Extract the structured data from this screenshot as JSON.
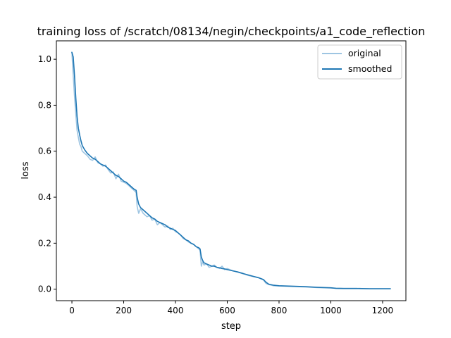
{
  "chart_data": {
    "type": "line",
    "title": "training loss of /scratch/08134/negin/checkpoints/a1_code_reflection",
    "xlabel": "step",
    "ylabel": "loss",
    "xlim": [
      -60,
      1290
    ],
    "ylim": [
      -0.05,
      1.08
    ],
    "xticks": [
      0,
      200,
      400,
      600,
      800,
      1000,
      1200
    ],
    "yticks": [
      0.0,
      0.2,
      0.4,
      0.6,
      0.8,
      1.0
    ],
    "xtick_labels": [
      "0",
      "200",
      "400",
      "600",
      "800",
      "1000",
      "1200"
    ],
    "ytick_labels": [
      "0.0",
      "0.2",
      "0.4",
      "0.6",
      "0.8",
      "1.0"
    ],
    "grid": false,
    "legend_position": "top-right",
    "series": [
      {
        "name": "original",
        "color": "#9ec5e2",
        "x": [
          0,
          5,
          10,
          15,
          20,
          25,
          30,
          35,
          40,
          50,
          60,
          70,
          80,
          90,
          100,
          110,
          120,
          130,
          140,
          150,
          160,
          170,
          180,
          190,
          200,
          210,
          220,
          230,
          240,
          248,
          252,
          258,
          265,
          275,
          290,
          300,
          310,
          320,
          330,
          340,
          350,
          360,
          370,
          380,
          390,
          400,
          410,
          420,
          430,
          440,
          450,
          460,
          470,
          480,
          490,
          495,
          500,
          505,
          510,
          520,
          530,
          540,
          550,
          560,
          570,
          580,
          590,
          600,
          620,
          640,
          660,
          680,
          700,
          720,
          740,
          750,
          760,
          780,
          800,
          850,
          900,
          950,
          1000,
          1020,
          1050,
          1100,
          1150,
          1200,
          1230
        ],
        "y": [
          1.03,
          0.93,
          0.84,
          0.76,
          0.69,
          0.66,
          0.63,
          0.62,
          0.6,
          0.59,
          0.58,
          0.565,
          0.56,
          0.575,
          0.55,
          0.545,
          0.535,
          0.54,
          0.52,
          0.505,
          0.51,
          0.48,
          0.5,
          0.47,
          0.465,
          0.46,
          0.45,
          0.44,
          0.43,
          0.42,
          0.36,
          0.33,
          0.35,
          0.33,
          0.315,
          0.32,
          0.3,
          0.305,
          0.28,
          0.29,
          0.28,
          0.27,
          0.275,
          0.26,
          0.265,
          0.25,
          0.245,
          0.235,
          0.22,
          0.215,
          0.205,
          0.2,
          0.195,
          0.185,
          0.175,
          0.17,
          0.1,
          0.12,
          0.105,
          0.11,
          0.095,
          0.1,
          0.105,
          0.095,
          0.09,
          0.1,
          0.085,
          0.09,
          0.08,
          0.075,
          0.07,
          0.06,
          0.055,
          0.05,
          0.04,
          0.025,
          0.02,
          0.015,
          0.014,
          0.012,
          0.01,
          0.007,
          0.005,
          0.004,
          0.003,
          0.003,
          0.002,
          0.002,
          0.002
        ]
      },
      {
        "name": "smoothed",
        "color": "#1f77b4",
        "x": [
          0,
          5,
          10,
          15,
          20,
          25,
          30,
          35,
          40,
          50,
          60,
          70,
          80,
          90,
          100,
          110,
          120,
          130,
          140,
          150,
          160,
          170,
          180,
          190,
          200,
          210,
          220,
          230,
          240,
          248,
          252,
          258,
          265,
          275,
          290,
          300,
          310,
          320,
          330,
          340,
          350,
          360,
          370,
          380,
          390,
          400,
          410,
          420,
          430,
          440,
          450,
          460,
          470,
          480,
          490,
          495,
          500,
          505,
          510,
          520,
          530,
          540,
          550,
          560,
          570,
          580,
          590,
          600,
          620,
          640,
          660,
          680,
          700,
          720,
          740,
          750,
          760,
          780,
          800,
          850,
          900,
          950,
          1000,
          1020,
          1050,
          1100,
          1150,
          1200,
          1230
        ],
        "y": [
          1.03,
          1.01,
          0.93,
          0.83,
          0.75,
          0.7,
          0.67,
          0.645,
          0.625,
          0.605,
          0.59,
          0.58,
          0.57,
          0.565,
          0.555,
          0.545,
          0.54,
          0.535,
          0.525,
          0.515,
          0.505,
          0.495,
          0.49,
          0.48,
          0.47,
          0.465,
          0.455,
          0.445,
          0.435,
          0.43,
          0.4,
          0.37,
          0.355,
          0.345,
          0.33,
          0.32,
          0.31,
          0.305,
          0.295,
          0.29,
          0.285,
          0.28,
          0.27,
          0.265,
          0.26,
          0.255,
          0.245,
          0.235,
          0.225,
          0.215,
          0.21,
          0.2,
          0.195,
          0.185,
          0.18,
          0.175,
          0.14,
          0.125,
          0.115,
          0.11,
          0.105,
          0.1,
          0.1,
          0.095,
          0.093,
          0.09,
          0.088,
          0.085,
          0.08,
          0.075,
          0.068,
          0.062,
          0.056,
          0.05,
          0.042,
          0.03,
          0.022,
          0.017,
          0.015,
          0.013,
          0.011,
          0.008,
          0.006,
          0.004,
          0.003,
          0.003,
          0.002,
          0.002,
          0.002
        ]
      }
    ]
  }
}
